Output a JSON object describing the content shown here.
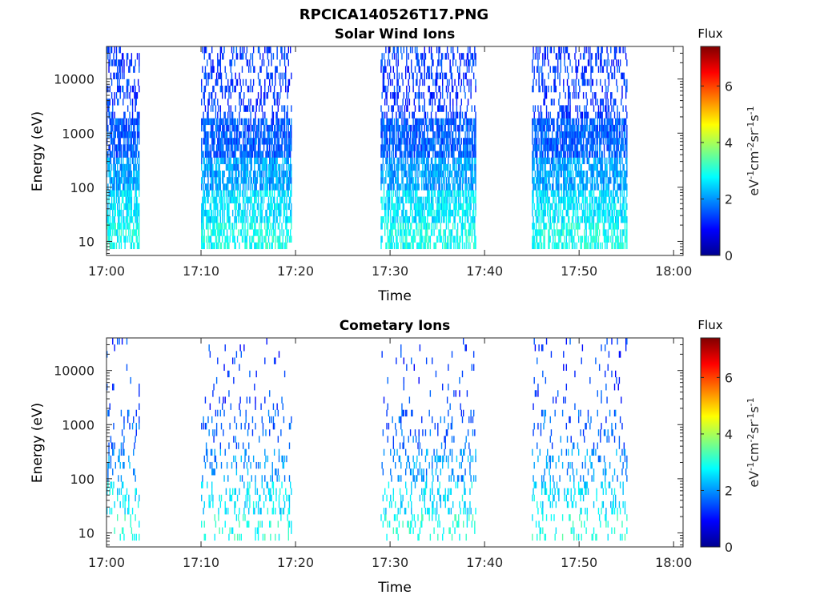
{
  "figure": {
    "main_title": "RPCICA140526T17.PNG"
  },
  "panels": {
    "solar": {
      "title": "Solar Wind Ions",
      "xlabel": "Time",
      "ylabel": "Energy (eV)",
      "colorbar_title": "Flux"
    },
    "cometary": {
      "title": "Cometary Ions",
      "xlabel": "Time",
      "ylabel": "Energy (eV)",
      "colorbar_title": "Flux"
    }
  },
  "chart_data": [
    {
      "type": "heatmap",
      "title": "Solar Wind Ions",
      "xlabel": "Time",
      "ylabel": "Energy (eV)",
      "x_range": [
        "17:00",
        "18:01"
      ],
      "x_ticks": [
        "17:00",
        "17:10",
        "17:20",
        "17:30",
        "17:40",
        "17:50",
        "18:00"
      ],
      "y_scale": "log",
      "y_range": [
        5.5,
        40000
      ],
      "y_ticks": [
        "10",
        "100",
        "1000",
        "10000"
      ],
      "color_scale": "jet",
      "colorbar": {
        "title": "Flux",
        "units": "eV-1 cm-2 sr-1 s-1",
        "range": [
          0,
          7.4
        ],
        "ticks": [
          "0",
          "2",
          "4",
          "6"
        ]
      },
      "data_intervals": [
        [
          "17:00",
          "17:03.5"
        ],
        [
          "17:10",
          "17:19.5"
        ],
        [
          "17:29",
          "17:39"
        ],
        [
          "17:45",
          "17:55"
        ]
      ],
      "seed": 7,
      "density": 1.0,
      "bands": [
        {
          "emin": 7,
          "emax": 25,
          "flux": 2.9,
          "prob": 0.6
        },
        {
          "emin": 25,
          "emax": 90,
          "flux": 2.6,
          "prob": 0.65
        },
        {
          "emin": 90,
          "emax": 400,
          "flux": 2.1,
          "prob": 0.7
        },
        {
          "emin": 400,
          "emax": 2000,
          "flux": 1.6,
          "prob": 0.75
        },
        {
          "emin": 2000,
          "emax": 38000,
          "flux": 1.3,
          "prob": 0.3
        }
      ]
    },
    {
      "type": "heatmap",
      "title": "Cometary Ions",
      "xlabel": "Time",
      "ylabel": "Energy (eV)",
      "x_range": [
        "17:00",
        "18:01"
      ],
      "x_ticks": [
        "17:00",
        "17:10",
        "17:20",
        "17:30",
        "17:40",
        "17:50",
        "18:00"
      ],
      "y_scale": "log",
      "y_range": [
        5.5,
        40000
      ],
      "y_ticks": [
        "10",
        "100",
        "1000",
        "10000"
      ],
      "color_scale": "jet",
      "colorbar": {
        "title": "Flux",
        "units": "eV-1 cm-2 sr-1 s-1",
        "range": [
          0,
          7.4
        ],
        "ticks": [
          "0",
          "2",
          "4",
          "6"
        ]
      },
      "data_intervals": [
        [
          "17:00",
          "17:03.5"
        ],
        [
          "17:10",
          "17:19.5"
        ],
        [
          "17:29",
          "17:39"
        ],
        [
          "17:45",
          "17:55"
        ]
      ],
      "seed": 13,
      "density": 0.45,
      "bands": [
        {
          "emin": 7,
          "emax": 25,
          "flux": 3.0,
          "prob": 0.3
        },
        {
          "emin": 25,
          "emax": 90,
          "flux": 2.6,
          "prob": 0.45
        },
        {
          "emin": 90,
          "emax": 400,
          "flux": 2.0,
          "prob": 0.4
        },
        {
          "emin": 400,
          "emax": 2000,
          "flux": 1.6,
          "prob": 0.25
        },
        {
          "emin": 2000,
          "emax": 38000,
          "flux": 1.3,
          "prob": 0.1
        }
      ]
    }
  ]
}
